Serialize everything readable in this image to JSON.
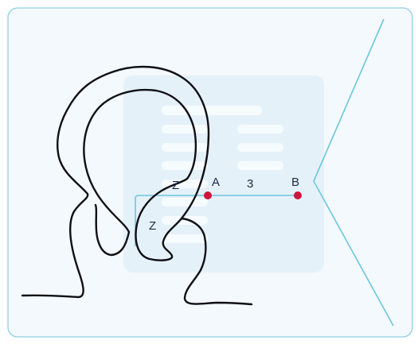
{
  "labels": {
    "point_a": "A",
    "point_b": "B",
    "segment_ab": "3",
    "z_upper": "Z",
    "z_lower": "Z"
  },
  "colors": {
    "panel_bg": "#f3f9fd",
    "panel_border": "#8fd0e2",
    "ghost_card": "#e5f1f9",
    "ghost_lines": "#f6fbfe",
    "line_cyan": "#6cc6e0",
    "curve": "#0f0f14",
    "point": "#d0143c",
    "text": "#1f2a44"
  }
}
